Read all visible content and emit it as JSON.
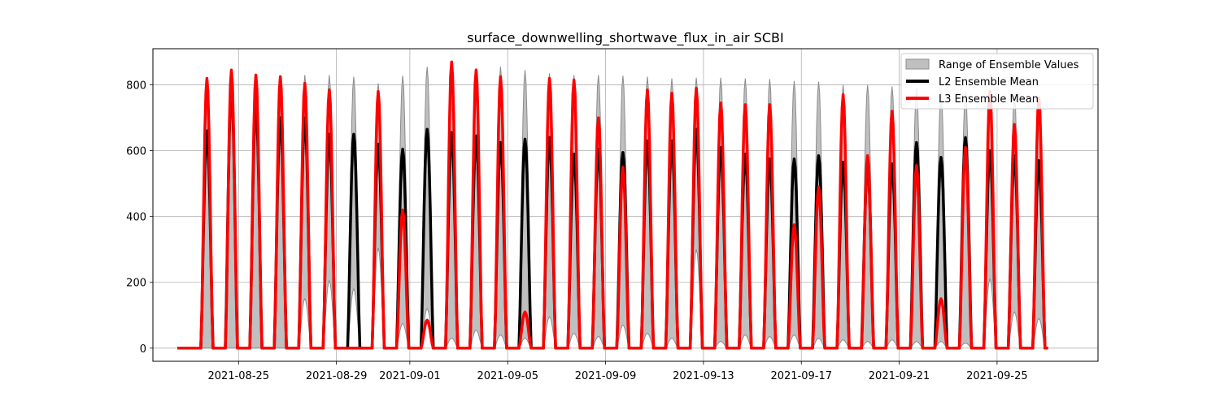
{
  "chart_data": {
    "type": "line",
    "title": "surface_downwelling_shortwave_flux_in_air SCBI",
    "xlabel": "",
    "ylabel": "",
    "x_axis": "date",
    "xlim": [
      "2021-08-21T12:00",
      "2021-09-29T03:00"
    ],
    "ylim": [
      -40,
      910
    ],
    "yticks": [
      0,
      200,
      400,
      600,
      800
    ],
    "xticks": [
      "2021-08-25",
      "2021-08-29",
      "2021-09-01",
      "2021-09-05",
      "2021-09-09",
      "2021-09-13",
      "2021-09-17",
      "2021-09-21",
      "2021-09-25"
    ],
    "grid": true,
    "legend_position": "top-right",
    "start": "2021-08-22T12:00",
    "end": "2021-09-27T02:00",
    "daily_peak_hour": 17,
    "legend": [
      {
        "label": "Range of Ensemble Values",
        "kind": "area"
      },
      {
        "label": "L2 Ensemble Mean",
        "kind": "line"
      },
      {
        "label": "L3 Ensemble Mean",
        "kind": "line"
      }
    ],
    "colors": {
      "range_fill": "#bfbfbf",
      "range_edge": "#8c8c8c",
      "l2": "#000000",
      "l3": "#ff0000"
    },
    "series": [
      {
        "daily_dates": [
          "2021-08-23",
          "2021-08-24",
          "2021-08-25",
          "2021-08-26",
          "2021-08-27",
          "2021-08-28",
          "2021-08-29",
          "2021-08-30",
          "2021-08-31",
          "2021-09-01",
          "2021-09-02",
          "2021-09-03",
          "2021-09-04",
          "2021-09-05",
          "2021-09-06",
          "2021-09-07",
          "2021-09-08",
          "2021-09-09",
          "2021-09-10",
          "2021-09-11",
          "2021-09-12",
          "2021-09-13",
          "2021-09-14",
          "2021-09-15",
          "2021-09-16",
          "2021-09-17",
          "2021-09-18",
          "2021-09-19",
          "2021-09-20",
          "2021-09-21",
          "2021-09-22",
          "2021-09-23",
          "2021-09-24",
          "2021-09-25",
          "2021-09-26"
        ],
        "range_max": [
          820,
          840,
          830,
          825,
          830,
          830,
          825,
          805,
          828,
          855,
          850,
          850,
          855,
          845,
          835,
          830,
          830,
          828,
          825,
          820,
          822,
          822,
          820,
          818,
          812,
          810,
          800,
          800,
          795,
          790,
          785,
          780,
          775,
          770,
          765
        ],
        "range_min": [
          0,
          0,
          0,
          0,
          150,
          205,
          180,
          305,
          75,
          120,
          30,
          55,
          40,
          30,
          95,
          45,
          35,
          70,
          45,
          30,
          300,
          20,
          40,
          35,
          40,
          30,
          25,
          20,
          25,
          20,
          20,
          15,
          210,
          110,
          90
        ],
        "l2_peak": [
          660,
          790,
          740,
          700,
          700,
          650,
          650,
          620,
          605,
          665,
          655,
          645,
          625,
          635,
          640,
          590,
          605,
          595,
          630,
          630,
          665,
          610,
          590,
          575,
          575,
          585,
          565,
          555,
          560,
          625,
          580,
          640,
          600,
          585,
          570
        ],
        "l3_peak": [
          820,
          845,
          830,
          825,
          805,
          785,
          0,
          780,
          420,
          85,
          870,
          845,
          825,
          110,
          820,
          815,
          700,
          550,
          785,
          775,
          790,
          745,
          740,
          740,
          375,
          490,
          770,
          585,
          720,
          555,
          150,
          610,
          780,
          680,
          760
        ]
      }
    ]
  }
}
